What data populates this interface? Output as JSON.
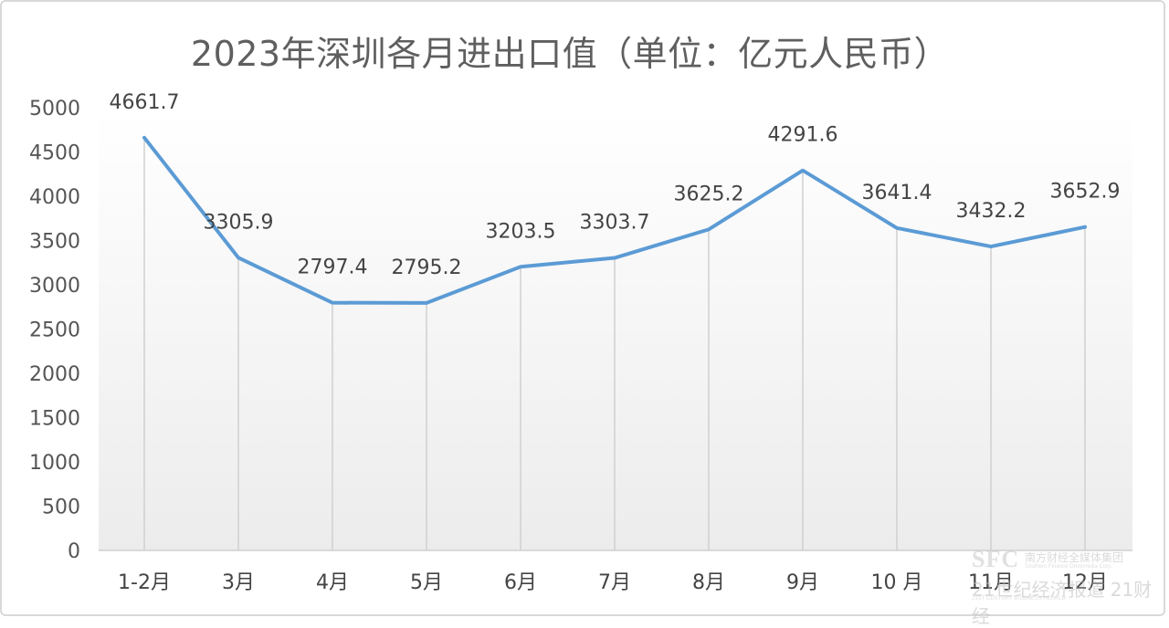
{
  "chart_data": {
    "type": "line",
    "title": "2023年深圳各月进出口值（单位：亿元人民币）",
    "categories": [
      "1-2月",
      "3月",
      "4月",
      "5月",
      "6月",
      "7月",
      "8月",
      "9月",
      "10 月",
      "11月",
      "12月"
    ],
    "values": [
      4661.7,
      3305.9,
      2797.4,
      2795.2,
      3203.5,
      3303.7,
      3625.2,
      4291.6,
      3641.4,
      3432.2,
      3652.9
    ],
    "data_labels": [
      "4661.7",
      "3305.9",
      "2797.4",
      "2795.2",
      "3203.5",
      "3303.7",
      "3625.2",
      "4291.6",
      "3641.4",
      "3432.2",
      "3652.9"
    ],
    "yticks": [
      0,
      500,
      1000,
      1500,
      2000,
      2500,
      3000,
      3500,
      4000,
      4500,
      5000
    ],
    "ylim": [
      0,
      5000
    ],
    "xlabel": "",
    "ylabel": "",
    "grid": "vertical",
    "line_color": "#5b9bd5",
    "background_gradient": [
      "#ffffff",
      "#ececec"
    ]
  },
  "watermark": {
    "logo": "SFC",
    "org_cn": "南方财经全媒体集团",
    "org_en": "Southern Finance Omnimedia Corp.",
    "brand_cn": "21世纪经济报道 21财经",
    "brand_en": "21ST CENTURY BUSINESS HERALD"
  }
}
